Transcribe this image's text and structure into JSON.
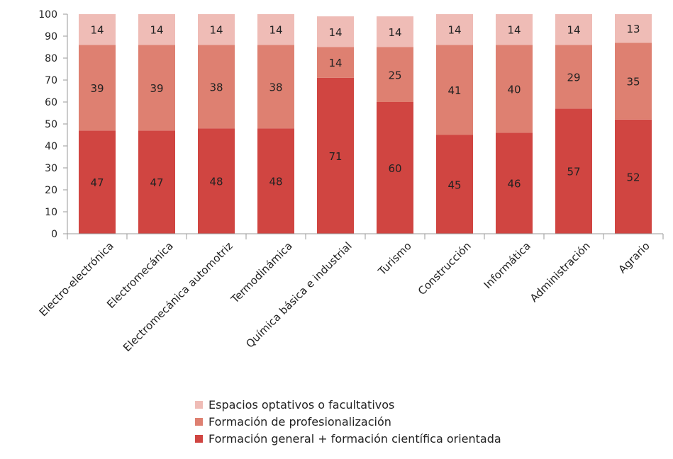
{
  "chart_data": {
    "type": "bar",
    "stacked": true,
    "categories": [
      "Electro-electrónica",
      "Electromecánica",
      "Electromecánica automotriz",
      "Termodinámica",
      "Química básica e industrial",
      "Turismo",
      "Construcción",
      "Informática",
      "Administración",
      "Agrario"
    ],
    "series": [
      {
        "name": "Formación general + formación científica orientada",
        "color": "#d04541",
        "values": [
          47,
          47,
          48,
          48,
          71,
          60,
          45,
          46,
          57,
          52
        ]
      },
      {
        "name": "Formación de profesionalización",
        "color": "#de8071",
        "values": [
          39,
          39,
          38,
          38,
          14,
          25,
          41,
          40,
          29,
          35
        ]
      },
      {
        "name": "Espacios optativos o facultativos",
        "color": "#efbcb6",
        "values": [
          14,
          14,
          14,
          14,
          14,
          14,
          14,
          14,
          14,
          13
        ]
      }
    ],
    "ylim": [
      0,
      100
    ],
    "yticks": [
      0,
      10,
      20,
      30,
      40,
      50,
      60,
      70,
      80,
      90,
      100
    ],
    "grid": false,
    "legend_position": "bottom",
    "legend_order": [
      "Espacios optativos o facultativos",
      "Formación de profesionalización",
      "Formación general + formación científica orientada"
    ],
    "title": "",
    "xlabel": "",
    "ylabel": ""
  }
}
